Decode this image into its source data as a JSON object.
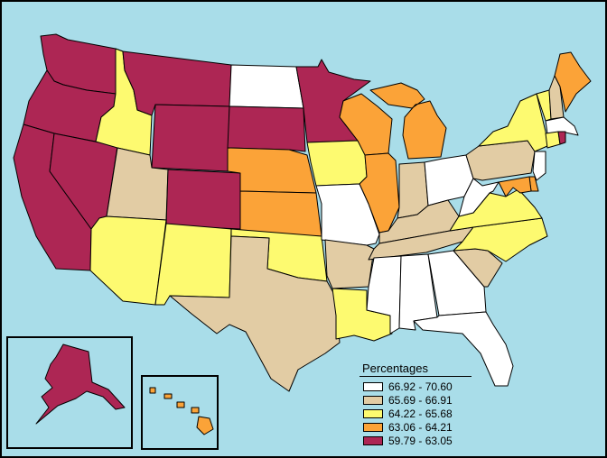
{
  "legend": {
    "title": "Percentages",
    "items": [
      {
        "label": "66.92 - 70.60",
        "color": "#ffffff"
      },
      {
        "label": "65.69 - 66.91",
        "color": "#e2cca4"
      },
      {
        "label": "64.22 - 65.68",
        "color": "#fdfa70"
      },
      {
        "label": "63.06 - 64.21",
        "color": "#fba338"
      },
      {
        "label": "59.79 - 63.05",
        "color": "#ad2654"
      }
    ]
  },
  "colors": {
    "water": "#a9dde9",
    "border": "#000000"
  },
  "states": [
    {
      "code": "WA",
      "class": 4
    },
    {
      "code": "OR",
      "class": 4
    },
    {
      "code": "CA",
      "class": 4
    },
    {
      "code": "NV",
      "class": 4
    },
    {
      "code": "ID",
      "class": 2
    },
    {
      "code": "MT",
      "class": 4
    },
    {
      "code": "WY",
      "class": 4
    },
    {
      "code": "UT",
      "class": 1
    },
    {
      "code": "AZ",
      "class": 2
    },
    {
      "code": "CO",
      "class": 4
    },
    {
      "code": "NM",
      "class": 2
    },
    {
      "code": "ND",
      "class": 0
    },
    {
      "code": "SD",
      "class": 4
    },
    {
      "code": "NE",
      "class": 3
    },
    {
      "code": "KS",
      "class": 3
    },
    {
      "code": "OK",
      "class": 2
    },
    {
      "code": "TX",
      "class": 1
    },
    {
      "code": "MN",
      "class": 4
    },
    {
      "code": "IA",
      "class": 2
    },
    {
      "code": "MO",
      "class": 0
    },
    {
      "code": "AR",
      "class": 1
    },
    {
      "code": "LA",
      "class": 2
    },
    {
      "code": "WI",
      "class": 3
    },
    {
      "code": "IL",
      "class": 3
    },
    {
      "code": "MI",
      "class": 3
    },
    {
      "code": "IN",
      "class": 1
    },
    {
      "code": "OH",
      "class": 0
    },
    {
      "code": "KY",
      "class": 1
    },
    {
      "code": "TN",
      "class": 1
    },
    {
      "code": "MS",
      "class": 0
    },
    {
      "code": "AL",
      "class": 0
    },
    {
      "code": "GA",
      "class": 0
    },
    {
      "code": "FL",
      "class": 0
    },
    {
      "code": "SC",
      "class": 1
    },
    {
      "code": "NC",
      "class": 2
    },
    {
      "code": "VA",
      "class": 2
    },
    {
      "code": "WV",
      "class": 0
    },
    {
      "code": "PA",
      "class": 1
    },
    {
      "code": "NY",
      "class": 2
    },
    {
      "code": "VT",
      "class": 2
    },
    {
      "code": "NH",
      "class": 1
    },
    {
      "code": "ME",
      "class": 3
    },
    {
      "code": "MA",
      "class": 0
    },
    {
      "code": "RI",
      "class": 4
    },
    {
      "code": "CT",
      "class": 2
    },
    {
      "code": "NJ",
      "class": 0
    },
    {
      "code": "DE",
      "class": 3
    },
    {
      "code": "MD",
      "class": 3
    },
    {
      "code": "AK",
      "class": 4
    },
    {
      "code": "HI",
      "class": 3
    }
  ]
}
